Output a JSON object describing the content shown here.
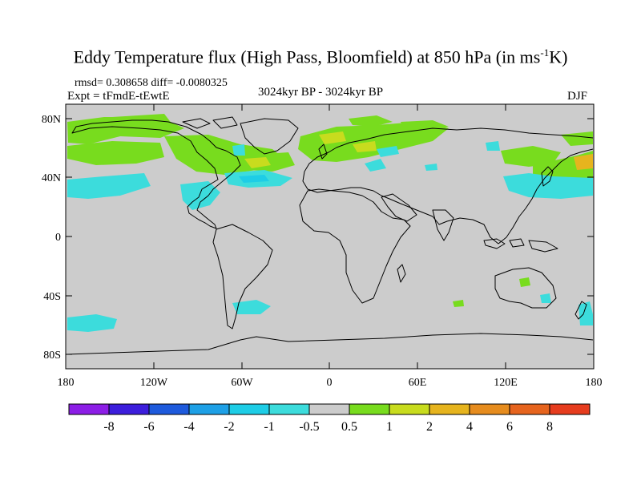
{
  "title": {
    "main": "Eddy Temperature flux (High Pass, Bloomfield) at 850 hPa (in ms",
    "sup": "-1",
    "end": "K)"
  },
  "stats": "rmsd= 0.308658 diff= -0.0080325",
  "expt": "Expt = tFmdE-tEwtE",
  "period": "3024kyr BP - 3024kyr BP",
  "season": "DJF",
  "axes": {
    "lat_labels": [
      "80N",
      "40N",
      "0",
      "40S",
      "80S"
    ],
    "lon_labels": [
      "180",
      "120W",
      "60W",
      "0",
      "60E",
      "120E",
      "180"
    ]
  },
  "colorbar": {
    "colors": [
      "#8c1ee6",
      "#3c1edc",
      "#1e5adc",
      "#1ea0e6",
      "#1ecde6",
      "#3cdcdc",
      "#cccccc",
      "#78dc1e",
      "#c8dc1e",
      "#e6b41e",
      "#e68c1e",
      "#e6641e",
      "#e63c1e"
    ],
    "labels": [
      "-8",
      "-6",
      "-4",
      "-2",
      "-1",
      "-0.5",
      "0.5",
      "1",
      "2",
      "4",
      "6",
      "8"
    ]
  }
}
